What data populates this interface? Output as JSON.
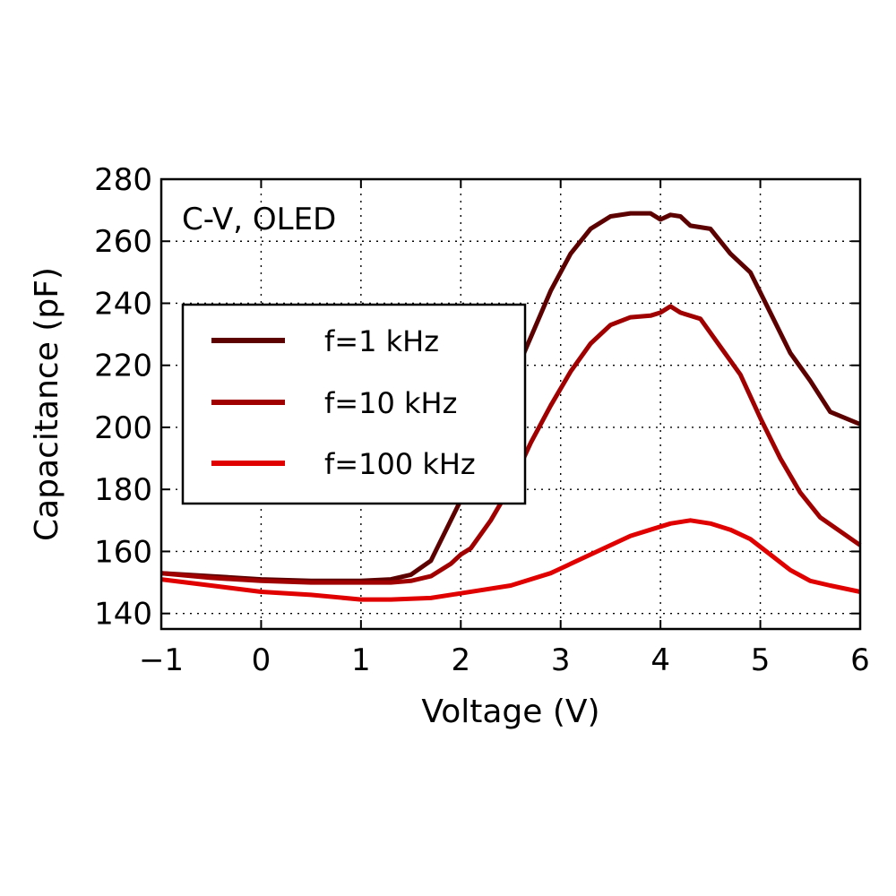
{
  "chart_data": {
    "type": "line",
    "title": "",
    "annotation": "C-V, OLED",
    "xlabel": "Voltage (V)",
    "ylabel": "Capacitance (pF)",
    "xlim": [
      -1,
      6
    ],
    "ylim": [
      135,
      280
    ],
    "xticks": [
      -1,
      0,
      1,
      2,
      3,
      4,
      5,
      6
    ],
    "xtick_labels": [
      "−1",
      "0",
      "1",
      "2",
      "3",
      "4",
      "5",
      "6"
    ],
    "yticks": [
      140,
      160,
      180,
      200,
      220,
      240,
      260,
      280
    ],
    "ytick_labels": [
      "140",
      "160",
      "180",
      "200",
      "220",
      "240",
      "260",
      "280"
    ],
    "grid": true,
    "legend_position": "center-left",
    "series": [
      {
        "name": "f=1 kHz",
        "color": "#5c0000",
        "x": [
          -1,
          -0.5,
          0,
          0.5,
          1,
          1.3,
          1.5,
          1.7,
          1.9,
          2.1,
          2.3,
          2.5,
          2.7,
          2.9,
          3.1,
          3.3,
          3.5,
          3.7,
          3.9,
          4.0,
          4.1,
          4.2,
          4.3,
          4.5,
          4.7,
          4.9,
          5.1,
          5.3,
          5.5,
          5.7,
          6
        ],
        "y": [
          153,
          152,
          151,
          150.5,
          150.5,
          151,
          152.5,
          157,
          170,
          183,
          198,
          214,
          229,
          244,
          256,
          264,
          268,
          269,
          269,
          267,
          268.5,
          268,
          265,
          264,
          256,
          250,
          237,
          224,
          215,
          205,
          201
        ]
      },
      {
        "name": "f=10 kHz",
        "color": "#a00000",
        "x": [
          -1,
          -0.5,
          0,
          0.5,
          1,
          1.3,
          1.5,
          1.7,
          1.9,
          2.0,
          2.1,
          2.3,
          2.5,
          2.7,
          2.9,
          3.1,
          3.3,
          3.5,
          3.7,
          3.9,
          4.0,
          4.1,
          4.2,
          4.4,
          4.6,
          4.8,
          5.0,
          5.2,
          5.4,
          5.6,
          6
        ],
        "y": [
          153,
          151.5,
          150.5,
          150,
          150,
          150,
          150.5,
          152,
          156,
          159,
          161,
          170,
          181,
          195,
          207,
          218,
          227,
          233,
          235.5,
          236,
          237,
          239,
          237,
          235,
          226,
          217,
          203,
          190,
          179,
          171,
          162
        ]
      },
      {
        "name": "f=100 kHz",
        "color": "#e00000",
        "x": [
          -1,
          -0.5,
          0,
          0.5,
          1,
          1.3,
          1.7,
          2.0,
          2.5,
          2.9,
          3.3,
          3.7,
          3.9,
          4.1,
          4.3,
          4.5,
          4.7,
          4.9,
          5.1,
          5.3,
          5.5,
          5.7,
          6
        ],
        "y": [
          151,
          149,
          147,
          146,
          144.5,
          144.5,
          145,
          146.5,
          149,
          153,
          159,
          165,
          167,
          169,
          170,
          169,
          167,
          164,
          159,
          154,
          150.5,
          149,
          147
        ]
      }
    ]
  }
}
